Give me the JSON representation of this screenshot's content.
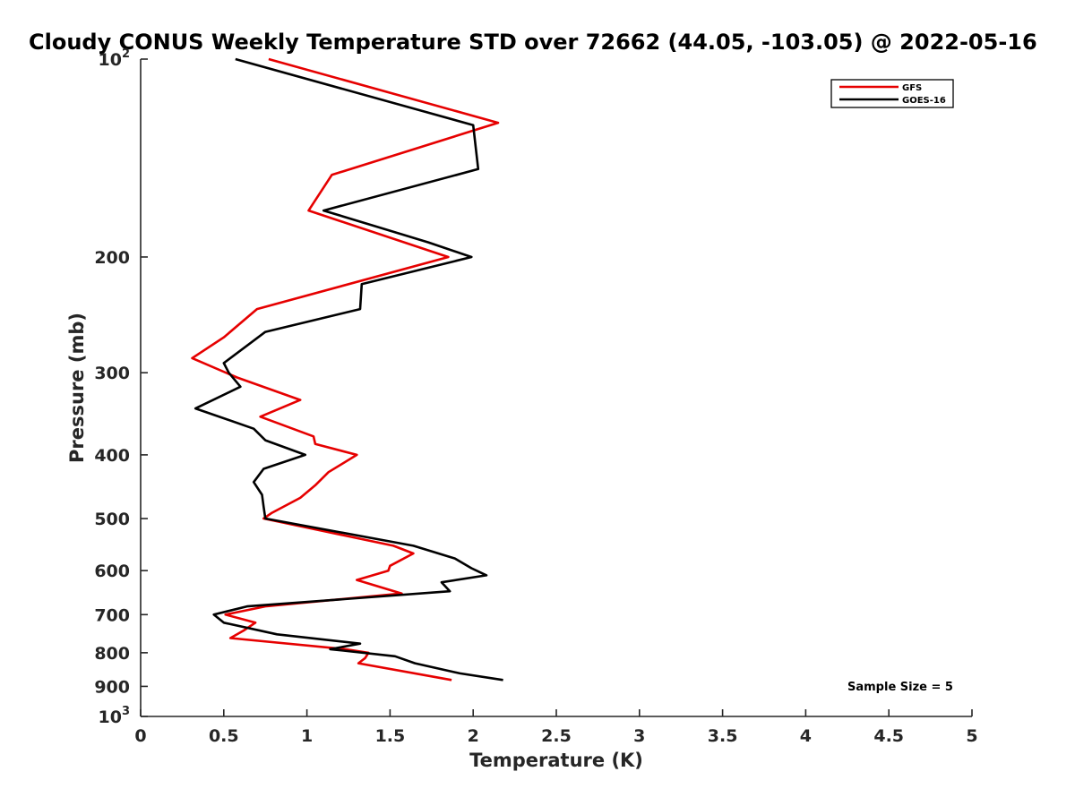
{
  "chart_data": {
    "type": "line",
    "title": "Cloudy CONUS Weekly Temperature STD over 72662 (44.05, -103.05) @ 2022-05-16",
    "xlabel": "Temperature (K)",
    "ylabel": "Pressure (mb)",
    "xlim": [
      0,
      5
    ],
    "ylim": [
      100,
      1000
    ],
    "yscale": "log",
    "y_reversed": true,
    "grid": false,
    "legend_position": "top-right",
    "x_ticks": [
      0,
      0.5,
      1,
      1.5,
      2,
      2.5,
      3,
      3.5,
      4,
      4.5,
      5
    ],
    "x_tick_labels": [
      "0",
      "0.5",
      "1",
      "1.5",
      "2",
      "2.5",
      "3",
      "3.5",
      "4",
      "4.5",
      "5"
    ],
    "y_ticks": [
      100,
      200,
      300,
      400,
      500,
      600,
      700,
      800,
      900,
      1000
    ],
    "y_tick_labels": [
      {
        "base": "10",
        "exp": "2"
      },
      {
        "base": "200",
        "exp": ""
      },
      {
        "base": "300",
        "exp": ""
      },
      {
        "base": "400",
        "exp": ""
      },
      {
        "base": "500",
        "exp": ""
      },
      {
        "base": "600",
        "exp": ""
      },
      {
        "base": "700",
        "exp": ""
      },
      {
        "base": "800",
        "exp": ""
      },
      {
        "base": "900",
        "exp": ""
      },
      {
        "base": "10",
        "exp": "3"
      }
    ],
    "annotation": "Sample Size = 5",
    "series": [
      {
        "name": "GFS",
        "color": "#e60000",
        "points": [
          [
            0.77,
            100
          ],
          [
            2.15,
            125
          ],
          [
            1.15,
            150
          ],
          [
            1.01,
            170
          ],
          [
            1.85,
            200
          ],
          [
            0.7,
            240
          ],
          [
            0.5,
            265
          ],
          [
            0.31,
            285
          ],
          [
            0.58,
            305
          ],
          [
            0.96,
            330
          ],
          [
            0.72,
            350
          ],
          [
            1.04,
            375
          ],
          [
            1.05,
            385
          ],
          [
            1.3,
            400
          ],
          [
            1.13,
            425
          ],
          [
            1.05,
            445
          ],
          [
            0.96,
            465
          ],
          [
            0.79,
            490
          ],
          [
            0.74,
            500
          ],
          [
            1.52,
            550
          ],
          [
            1.64,
            565
          ],
          [
            1.5,
            590
          ],
          [
            1.49,
            600
          ],
          [
            1.3,
            620
          ],
          [
            1.57,
            650
          ],
          [
            0.75,
            680
          ],
          [
            0.51,
            700
          ],
          [
            0.69,
            720
          ],
          [
            0.62,
            740
          ],
          [
            0.54,
            760
          ],
          [
            1.23,
            790
          ],
          [
            1.37,
            800
          ],
          [
            1.35,
            815
          ],
          [
            1.31,
            830
          ],
          [
            1.87,
            880
          ]
        ]
      },
      {
        "name": "GOES-16",
        "color": "#000000",
        "points": [
          [
            0.57,
            100
          ],
          [
            2.0,
            126
          ],
          [
            2.03,
            147
          ],
          [
            1.1,
            170
          ],
          [
            1.73,
            190
          ],
          [
            1.99,
            200
          ],
          [
            1.33,
            220
          ],
          [
            1.32,
            240
          ],
          [
            0.75,
            260
          ],
          [
            0.5,
            290
          ],
          [
            0.53,
            300
          ],
          [
            0.6,
            315
          ],
          [
            0.33,
            340
          ],
          [
            0.68,
            365
          ],
          [
            0.75,
            380
          ],
          [
            0.99,
            400
          ],
          [
            0.74,
            420
          ],
          [
            0.68,
            440
          ],
          [
            0.73,
            460
          ],
          [
            0.74,
            480
          ],
          [
            0.75,
            500
          ],
          [
            1.64,
            550
          ],
          [
            1.89,
            575
          ],
          [
            1.99,
            595
          ],
          [
            2.08,
            610
          ],
          [
            1.81,
            625
          ],
          [
            1.86,
            645
          ],
          [
            0.64,
            680
          ],
          [
            0.44,
            700
          ],
          [
            0.5,
            720
          ],
          [
            0.82,
            750
          ],
          [
            1.32,
            775
          ],
          [
            1.14,
            790
          ],
          [
            1.53,
            810
          ],
          [
            1.65,
            830
          ],
          [
            1.92,
            860
          ],
          [
            2.18,
            880
          ]
        ]
      }
    ]
  }
}
